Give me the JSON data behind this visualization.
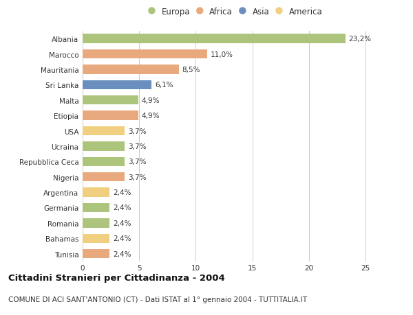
{
  "countries": [
    "Albania",
    "Marocco",
    "Mauritania",
    "Sri Lanka",
    "Malta",
    "Etiopia",
    "USA",
    "Ucraina",
    "Repubblica Ceca",
    "Nigeria",
    "Argentina",
    "Germania",
    "Romania",
    "Bahamas",
    "Tunisia"
  ],
  "values": [
    23.2,
    11.0,
    8.5,
    6.1,
    4.9,
    4.9,
    3.7,
    3.7,
    3.7,
    3.7,
    2.4,
    2.4,
    2.4,
    2.4,
    2.4
  ],
  "labels": [
    "23,2%",
    "11,0%",
    "8,5%",
    "6,1%",
    "4,9%",
    "4,9%",
    "3,7%",
    "3,7%",
    "3,7%",
    "3,7%",
    "2,4%",
    "2,4%",
    "2,4%",
    "2,4%",
    "2,4%"
  ],
  "colors": [
    "#adc47d",
    "#e8a97e",
    "#e8a97e",
    "#6a8fbf",
    "#adc47d",
    "#e8a97e",
    "#f0d080",
    "#adc47d",
    "#adc47d",
    "#e8a97e",
    "#f0d080",
    "#adc47d",
    "#adc47d",
    "#f0d080",
    "#e8a97e"
  ],
  "legend_labels": [
    "Europa",
    "Africa",
    "Asia",
    "America"
  ],
  "legend_colors": [
    "#adc47d",
    "#e8a97e",
    "#6a8fbf",
    "#f0d080"
  ],
  "xlim": [
    0,
    27
  ],
  "xticks": [
    0,
    5,
    10,
    15,
    20,
    25
  ],
  "title_bold": "Cittadini Stranieri per Cittadinanza - 2004",
  "subtitle": "COMUNE DI ACI SANT'ANTONIO (CT) - Dati ISTAT al 1° gennaio 2004 - TUTTITALIA.IT",
  "bg_color": "#ffffff",
  "grid_color": "#cccccc",
  "bar_height": 0.6,
  "label_fontsize": 7.5,
  "tick_fontsize": 7.5,
  "legend_fontsize": 8.5,
  "title_fontsize": 9.5,
  "subtitle_fontsize": 7.5
}
